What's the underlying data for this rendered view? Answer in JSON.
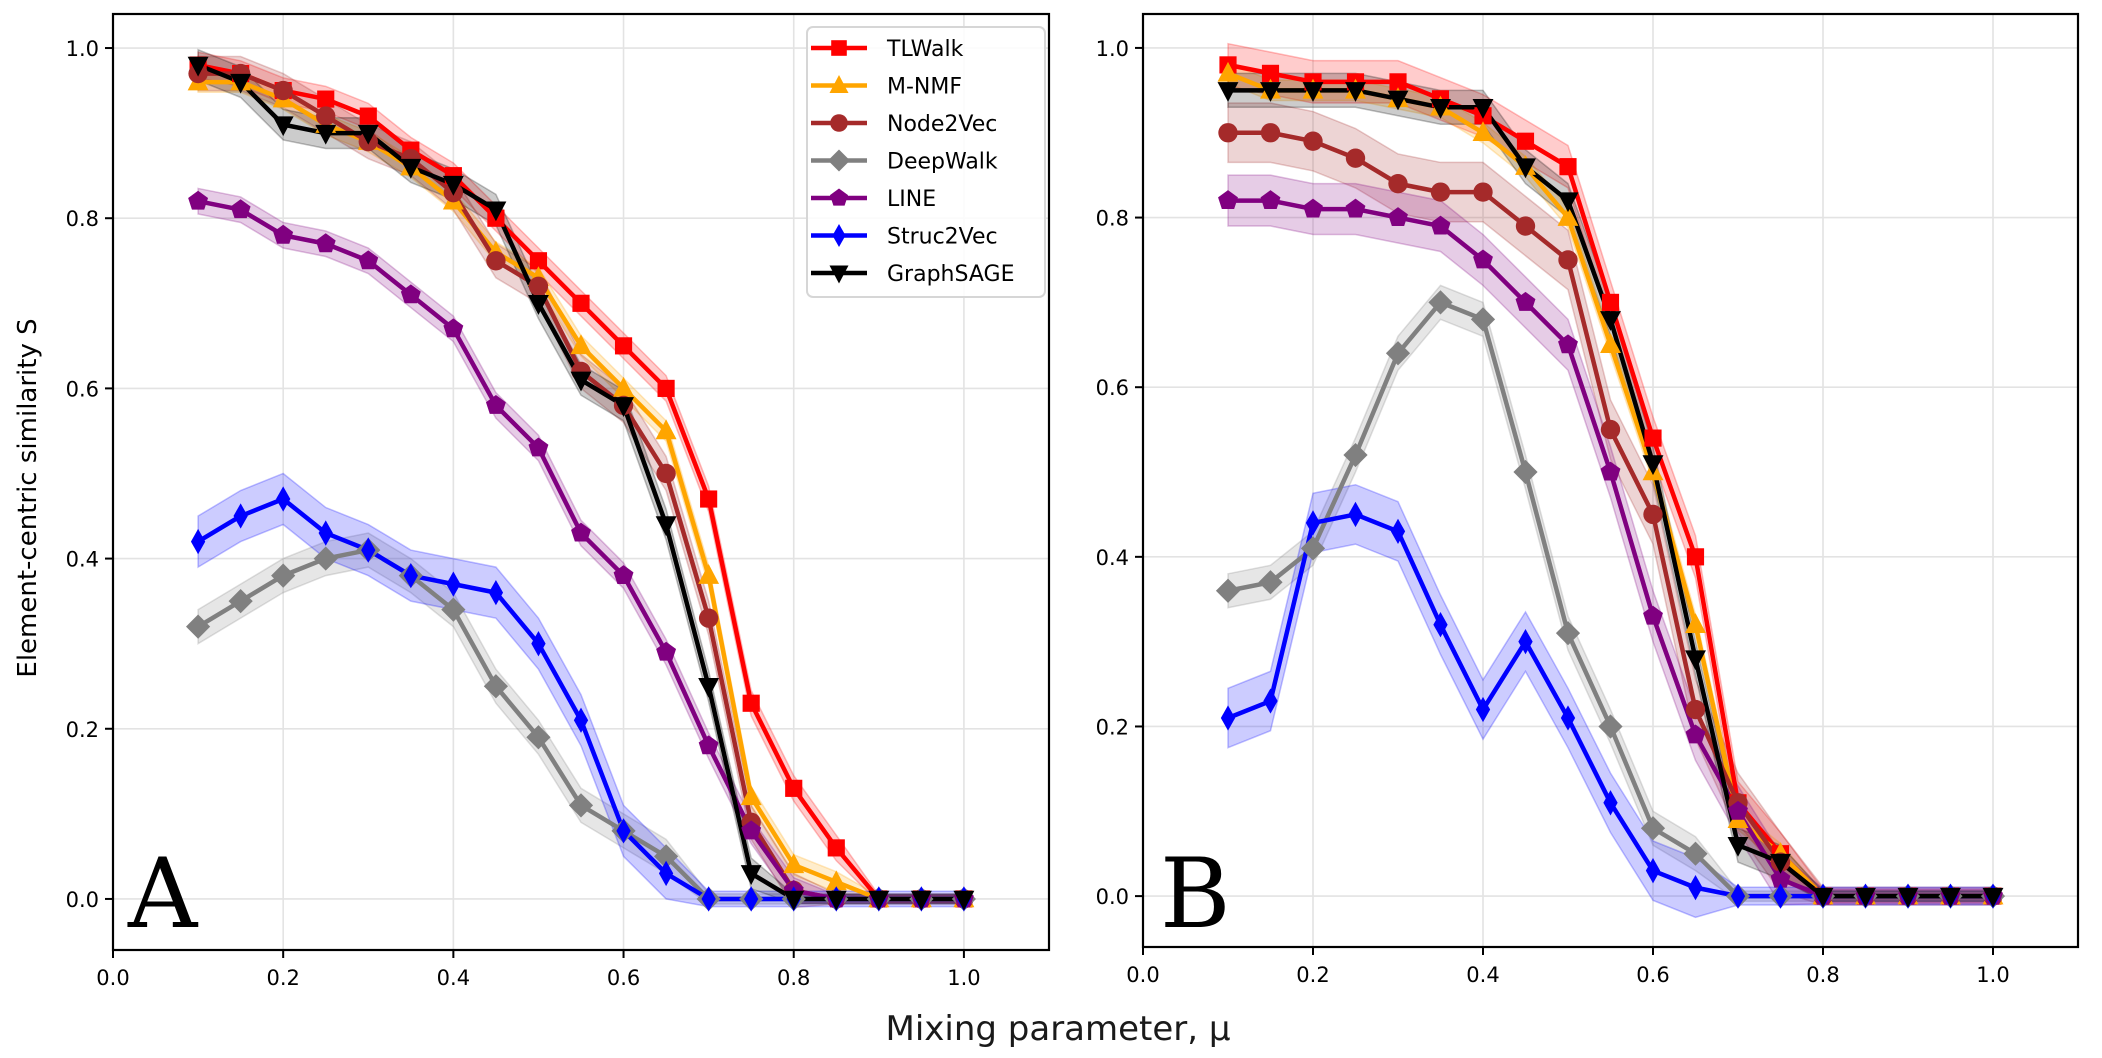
{
  "chart_data": {
    "type": "line",
    "xlabel": "Mixing parameter, μ",
    "ylabel": "Element-centric similarity S",
    "x": [
      0.1,
      0.15,
      0.2,
      0.25,
      0.3,
      0.35,
      0.4,
      0.45,
      0.5,
      0.55,
      0.6,
      0.65,
      0.7,
      0.75,
      0.8,
      0.85,
      0.9,
      0.95,
      1.0
    ],
    "xlim": [
      0.0,
      1.1
    ],
    "ylim": [
      -0.06,
      1.04
    ],
    "xticks": [
      "0.0",
      "0.2",
      "0.4",
      "0.6",
      "0.8",
      "1.0"
    ],
    "yticks": [
      "0.0",
      "0.2",
      "0.4",
      "0.6",
      "0.8",
      "1.0"
    ],
    "grid": true,
    "legend_position": "top-right of panel A",
    "legend": [
      "TLWalk",
      "M-NMF",
      "Node2Vec",
      "DeepWalk",
      "LINE",
      "Struc2Vec",
      "GraphSAGE"
    ],
    "series_style": [
      {
        "name": "TLWalk",
        "color": "#ff0000",
        "marker": "square"
      },
      {
        "name": "M-NMF",
        "color": "#ffa500",
        "marker": "triangle-up"
      },
      {
        "name": "Node2Vec",
        "color": "#a52a2a",
        "marker": "circle"
      },
      {
        "name": "DeepWalk",
        "color": "#808080",
        "marker": "diamond"
      },
      {
        "name": "LINE",
        "color": "#800080",
        "marker": "pentagon"
      },
      {
        "name": "Struc2Vec",
        "color": "#0000ff",
        "marker": "thin-diamond"
      },
      {
        "name": "GraphSAGE",
        "color": "#000000",
        "marker": "triangle-down"
      }
    ],
    "panels": [
      {
        "label": "A",
        "series": [
          {
            "name": "TLWalk",
            "values": [
              0.98,
              0.97,
              0.95,
              0.94,
              0.92,
              0.88,
              0.85,
              0.8,
              0.75,
              0.7,
              0.65,
              0.6,
              0.47,
              0.23,
              0.13,
              0.06,
              0.0,
              0.0,
              0.0
            ],
            "band": 0.015
          },
          {
            "name": "M-NMF",
            "values": [
              0.96,
              0.96,
              0.94,
              0.91,
              0.89,
              0.86,
              0.82,
              0.76,
              0.73,
              0.65,
              0.6,
              0.55,
              0.38,
              0.12,
              0.04,
              0.02,
              0.0,
              0.0,
              0.0
            ],
            "band": 0.012
          },
          {
            "name": "Node2Vec",
            "values": [
              0.97,
              0.97,
              0.95,
              0.92,
              0.89,
              0.87,
              0.83,
              0.75,
              0.72,
              0.62,
              0.58,
              0.5,
              0.33,
              0.09,
              0.01,
              0.0,
              0.0,
              0.0,
              0.0
            ],
            "band": 0.02
          },
          {
            "name": "DeepWalk",
            "values": [
              0.32,
              0.35,
              0.38,
              0.4,
              0.41,
              0.38,
              0.34,
              0.25,
              0.19,
              0.11,
              0.08,
              0.05,
              0.0,
              0.0,
              0.0,
              0.0,
              0.0,
              0.0,
              0.0
            ],
            "band": 0.02
          },
          {
            "name": "LINE",
            "values": [
              0.82,
              0.81,
              0.78,
              0.77,
              0.75,
              0.71,
              0.67,
              0.58,
              0.53,
              0.43,
              0.38,
              0.29,
              0.18,
              0.08,
              0.01,
              0.0,
              0.0,
              0.0,
              0.0
            ],
            "band": 0.015
          },
          {
            "name": "Struc2Vec",
            "values": [
              0.42,
              0.45,
              0.47,
              0.43,
              0.41,
              0.38,
              0.37,
              0.36,
              0.3,
              0.21,
              0.08,
              0.03,
              0.0,
              0.0,
              0.0,
              0.0,
              0.0,
              0.0,
              0.0
            ],
            "band": 0.03
          },
          {
            "name": "GraphSAGE",
            "values": [
              0.98,
              0.96,
              0.91,
              0.9,
              0.9,
              0.86,
              0.84,
              0.81,
              0.7,
              0.61,
              0.58,
              0.44,
              0.25,
              0.03,
              0.0,
              0.0,
              0.0,
              0.0,
              0.0
            ],
            "band": 0.018
          }
        ]
      },
      {
        "label": "B",
        "series": [
          {
            "name": "TLWalk",
            "values": [
              0.98,
              0.97,
              0.96,
              0.96,
              0.96,
              0.94,
              0.92,
              0.89,
              0.86,
              0.7,
              0.54,
              0.4,
              0.11,
              0.05,
              0.0,
              0.0,
              0.0,
              0.0,
              0.0
            ],
            "band": 0.025
          },
          {
            "name": "M-NMF",
            "values": [
              0.97,
              0.95,
              0.95,
              0.95,
              0.94,
              0.93,
              0.9,
              0.86,
              0.8,
              0.65,
              0.5,
              0.32,
              0.09,
              0.05,
              0.0,
              0.0,
              0.0,
              0.0,
              0.0
            ],
            "band": 0.012
          },
          {
            "name": "Node2Vec",
            "values": [
              0.9,
              0.9,
              0.89,
              0.87,
              0.84,
              0.83,
              0.83,
              0.79,
              0.75,
              0.55,
              0.45,
              0.22,
              0.11,
              0.04,
              0.0,
              0.0,
              0.0,
              0.0,
              0.0
            ],
            "band": 0.035
          },
          {
            "name": "DeepWalk",
            "values": [
              0.36,
              0.37,
              0.41,
              0.52,
              0.64,
              0.7,
              0.68,
              0.5,
              0.31,
              0.2,
              0.08,
              0.05,
              0.0,
              0.0,
              0.0,
              0.0,
              0.0,
              0.0,
              0.0
            ],
            "band": 0.02
          },
          {
            "name": "LINE",
            "values": [
              0.82,
              0.82,
              0.81,
              0.81,
              0.8,
              0.79,
              0.75,
              0.7,
              0.65,
              0.5,
              0.33,
              0.19,
              0.1,
              0.02,
              0.0,
              0.0,
              0.0,
              0.0,
              0.0
            ],
            "band": 0.03
          },
          {
            "name": "Struc2Vec",
            "values": [
              0.21,
              0.23,
              0.44,
              0.45,
              0.43,
              0.32,
              0.22,
              0.3,
              0.21,
              0.11,
              0.03,
              0.01,
              0.0,
              0.0,
              0.0,
              0.0,
              0.0,
              0.0,
              0.0
            ],
            "band": 0.035
          },
          {
            "name": "GraphSAGE",
            "values": [
              0.95,
              0.95,
              0.95,
              0.95,
              0.94,
              0.93,
              0.93,
              0.86,
              0.82,
              0.68,
              0.51,
              0.28,
              0.06,
              0.04,
              0.0,
              0.0,
              0.0,
              0.0,
              0.0
            ],
            "band": 0.02
          }
        ]
      }
    ]
  }
}
